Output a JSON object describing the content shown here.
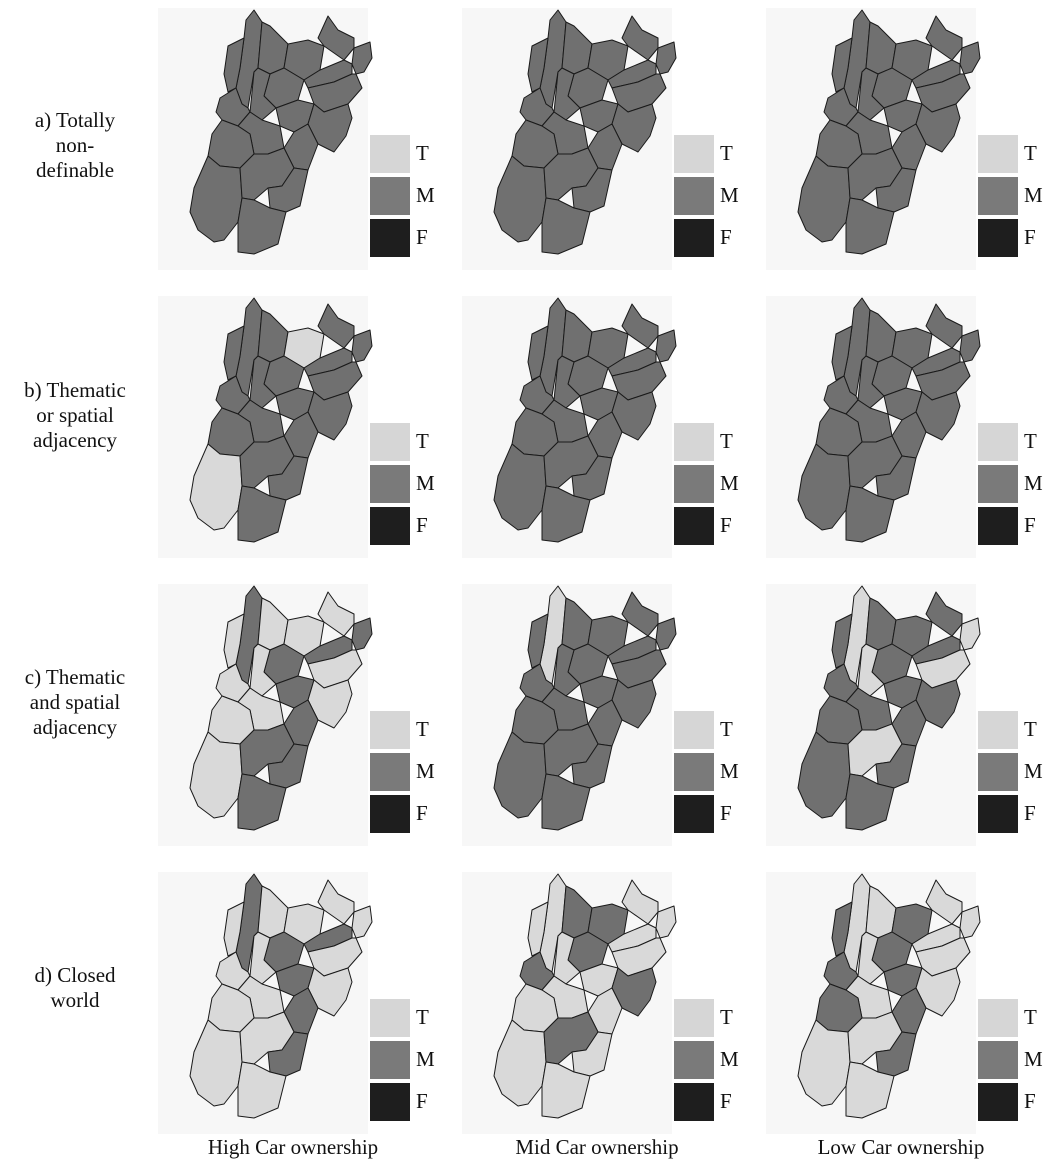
{
  "legend": {
    "items": [
      {
        "key": "T",
        "color": "#d6d6d6"
      },
      {
        "key": "M",
        "color": "#7a7a7a"
      },
      {
        "key": "F",
        "color": "#1e1e1e"
      }
    ]
  },
  "fill_colors": {
    "T": "#d9d9d9",
    "M": "#707070",
    "F": "#1e1e1e"
  },
  "rows": [
    {
      "label_lines": [
        "a) Totally",
        "non-",
        "definable"
      ]
    },
    {
      "label_lines": [
        "b) Thematic",
        "or spatial",
        "adjacency"
      ]
    },
    {
      "label_lines": [
        "c) Thematic",
        "and spatial",
        "adjacency"
      ]
    },
    {
      "label_lines": [
        "d) Closed",
        "world"
      ]
    }
  ],
  "columns": [
    {
      "label": "High Car ownership"
    },
    {
      "label": "Mid Car ownership"
    },
    {
      "label": "Low Car ownership"
    }
  ],
  "panels": [
    [
      "MMMMMMMMMMMMMMMMMMMM",
      "MMMMMMMMMMMMMMMMMMMM",
      "MMMMMMMMMMMMMMMMMMMM"
    ],
    [
      "MMMTMMMMMMMMMMMMTMMM",
      "MMMMMMMMMMMMMMMMMMMM",
      "MMMMMMMMMMMMMMMMMMMM"
    ],
    [
      "MTTTTMMMTTTMTTMTTMMM",
      "TMMMMMMMMMMMMMMMMMMM",
      "TMMMMTMMTTMMMMMMMTMM"
    ],
    [
      "MTTTTTMMTTTMTTMTTTMT",
      "TTMMTTMTTTMTTMTTTMTT",
      "TMTMTTMTTTMMTTMMTTMT"
    ]
  ]
}
